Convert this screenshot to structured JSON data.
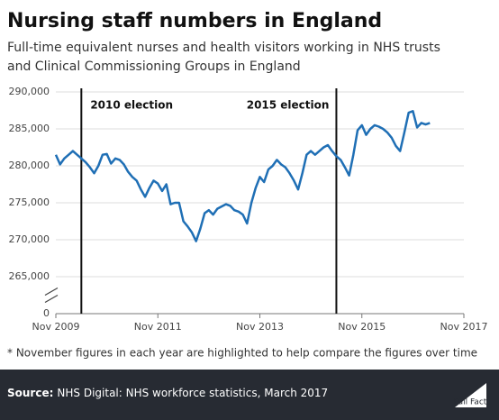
{
  "chart_data": {
    "type": "line",
    "title": "Nursing staff numbers in England",
    "subtitle": [
      "Full-time equivalent nurses and health visitors working in NHS trusts",
      "and Clinical Commissioning Groups in England"
    ],
    "note": "* November figures in each year are highlighted to help compare the figures over time",
    "source_label": "Source:",
    "source": "NHS Digital: NHS workforce statistics, March 2017",
    "logo": "Full Fact",
    "x": [
      "Nov 2009",
      "Dec 2009",
      "Jan 2010",
      "Feb 2010",
      "Mar 2010",
      "Apr 2010",
      "May 2010",
      "Jun 2010",
      "Jul 2010",
      "Aug 2010",
      "Sep 2010",
      "Oct 2010",
      "Nov 2010",
      "Dec 2010",
      "Jan 2011",
      "Feb 2011",
      "Mar 2011",
      "Apr 2011",
      "May 2011",
      "Jun 2011",
      "Jul 2011",
      "Aug 2011",
      "Sep 2011",
      "Oct 2011",
      "Nov 2011",
      "Dec 2011",
      "Jan 2012",
      "Feb 2012",
      "Mar 2012",
      "Apr 2012",
      "May 2012",
      "Jun 2012",
      "Jul 2012",
      "Aug 2012",
      "Sep 2012",
      "Oct 2012",
      "Nov 2012",
      "Dec 2012",
      "Jan 2013",
      "Feb 2013",
      "Mar 2013",
      "Apr 2013",
      "May 2013",
      "Jun 2013",
      "Jul 2013",
      "Aug 2013",
      "Sep 2013",
      "Oct 2013",
      "Nov 2013",
      "Dec 2013",
      "Jan 2014",
      "Feb 2014",
      "Mar 2014",
      "Apr 2014",
      "May 2014",
      "Jun 2014",
      "Jul 2014",
      "Aug 2014",
      "Sep 2014",
      "Oct 2014",
      "Nov 2014",
      "Dec 2014",
      "Jan 2015",
      "Feb 2015",
      "Mar 2015",
      "Apr 2015",
      "May 2015",
      "Jun 2015",
      "Jul 2015",
      "Aug 2015",
      "Sep 2015",
      "Oct 2015",
      "Nov 2015",
      "Dec 2015",
      "Jan 2016",
      "Feb 2016",
      "Mar 2016",
      "Apr 2016",
      "May 2016",
      "Jun 2016",
      "Jul 2016",
      "Aug 2016",
      "Sep 2016",
      "Oct 2016",
      "Nov 2016",
      "Dec 2016",
      "Jan 2017",
      "Feb 2017",
      "Mar 2017"
    ],
    "series": [
      {
        "color": "#1f6fb5",
        "values": [
          281500,
          280200,
          281000,
          281500,
          282000,
          281500,
          281000,
          280500,
          279800,
          279000,
          280000,
          281500,
          281600,
          280300,
          281000,
          280800,
          280200,
          279200,
          278500,
          278000,
          276800,
          275800,
          277000,
          278000,
          277600,
          276600,
          277500,
          274800,
          275000,
          275000,
          272500,
          271800,
          271000,
          269800,
          271500,
          273600,
          274000,
          273400,
          274200,
          274500,
          274800,
          274600,
          274000,
          273800,
          273400,
          272200,
          275000,
          277000,
          278500,
          277800,
          279500,
          280000,
          280800,
          280200,
          279800,
          279000,
          278000,
          276800,
          279000,
          281500,
          282000,
          281500,
          282000,
          282500,
          282800,
          282000,
          281300,
          280800,
          279800,
          278700,
          281500,
          284800,
          285500,
          284200,
          285000,
          285500,
          285300,
          285000,
          284500,
          283800,
          282700,
          282000,
          284500,
          287200,
          287400,
          285200,
          285800,
          285600,
          285800
        ]
      }
    ],
    "xlim": [
      "Nov 2009",
      "Nov 2017"
    ],
    "xticks": [
      "Nov 2009",
      "Nov 2011",
      "Nov 2013",
      "Nov 2015",
      "Nov 2017"
    ],
    "ylim": [
      0,
      290000
    ],
    "yticks": [
      0,
      {
        "value": 265000,
        "label": "265,000"
      },
      {
        "value": 270000,
        "label": "270,000"
      },
      {
        "value": 275000,
        "label": "275,000"
      },
      {
        "value": 280000,
        "label": "280,000"
      },
      {
        "value": 285000,
        "label": "285,000"
      },
      {
        "value": 290000,
        "label": "290,000"
      }
    ],
    "axis_break": true,
    "grid": true,
    "annotations": [
      {
        "x": "May 2010",
        "label": "2010 election"
      },
      {
        "x": "May 2015",
        "label": "2015 election"
      }
    ]
  }
}
